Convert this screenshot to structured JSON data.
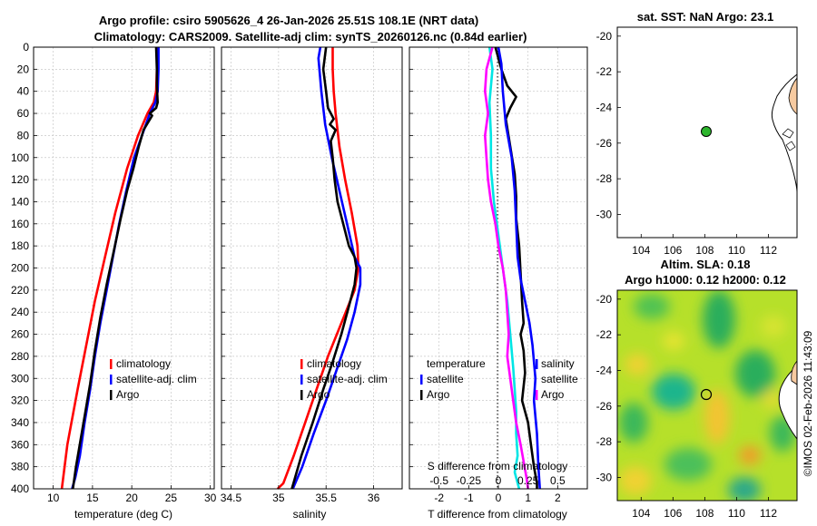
{
  "header": {
    "title_line1": "Argo profile: csiro 5905626_4 26-Jan-2026 25.51S 108.1E (NRT data)",
    "title_line2": "Climatology: CARS2009. Satellite-adj clim: synTS_20260126.nc (0.84d earlier)"
  },
  "colors": {
    "climatology": "#ff0000",
    "satellite": "#0000ff",
    "argo": "#000000",
    "magenta": "#ff00ff",
    "cyan": "#00e5e5",
    "land": "#f7caa0",
    "marker": "#2db52d"
  },
  "chart_data": [
    {
      "type": "line",
      "name": "temperature-profile",
      "xlabel": "temperature (deg C)",
      "ylabel": "",
      "xlim": [
        7.5,
        30.5
      ],
      "ylim": [
        0,
        400
      ],
      "y_reversed": true,
      "xticks": [
        10,
        15,
        20,
        25,
        30
      ],
      "yticks": [
        0,
        20,
        40,
        60,
        80,
        100,
        120,
        140,
        160,
        180,
        200,
        220,
        240,
        260,
        280,
        300,
        320,
        340,
        360,
        380,
        400
      ],
      "grid": true,
      "series": [
        {
          "name": "climatology",
          "color": "#ff0000",
          "x": [
            23.2,
            23.2,
            23.1,
            22.8,
            22.0,
            20.8,
            19.4,
            17.9,
            16.6,
            15.3,
            14.2,
            13.1,
            11.8,
            11.1
          ],
          "y": [
            0,
            20,
            40,
            50,
            60,
            80,
            110,
            150,
            190,
            230,
            270,
            310,
            360,
            400
          ]
        },
        {
          "name": "satellite-adj. clim",
          "color": "#0000ff",
          "x": [
            23.4,
            23.4,
            23.3,
            23.0,
            22.3,
            21.3,
            20.3,
            19.3,
            18.4,
            17.6,
            16.8,
            16.0,
            15.3,
            14.7,
            14.0,
            13.4,
            12.8,
            12.4
          ],
          "y": [
            0,
            20,
            40,
            50,
            60,
            80,
            100,
            130,
            160,
            190,
            220,
            250,
            280,
            310,
            340,
            370,
            390,
            400
          ]
        },
        {
          "name": "Argo",
          "color": "#000000",
          "x": [
            23.1,
            23.2,
            23.2,
            23.3,
            23.1,
            22.3,
            22.6,
            21.5,
            20.9,
            20.2,
            19.4,
            18.6,
            17.7,
            16.8,
            16.0,
            15.3,
            14.7,
            14.1,
            13.5,
            12.9,
            12.5
          ],
          "y": [
            0,
            20,
            35,
            50,
            55,
            60,
            62,
            75,
            90,
            110,
            130,
            155,
            185,
            215,
            245,
            275,
            305,
            330,
            355,
            380,
            400
          ]
        }
      ],
      "legend": [
        "climatology",
        "satellite-adj. clim",
        "Argo"
      ],
      "legend_loc": "lower-right"
    },
    {
      "type": "line",
      "name": "salinity-profile",
      "xlabel": "salinity",
      "ylabel": "",
      "xlim": [
        34.4,
        36.3
      ],
      "ylim": [
        0,
        400
      ],
      "y_reversed": true,
      "xticks": [
        34.5,
        35,
        35.5,
        36
      ],
      "xticklabels": [
        "34.5",
        "35",
        "35.5",
        "36"
      ],
      "grid": true,
      "series": [
        {
          "name": "climatology",
          "color": "#ff0000",
          "x": [
            35.57,
            35.57,
            35.58,
            35.6,
            35.64,
            35.7,
            35.77,
            35.83,
            35.84,
            35.8,
            35.66,
            35.52,
            35.4,
            35.28,
            35.16,
            35.05,
            34.99
          ],
          "y": [
            0,
            20,
            40,
            60,
            90,
            120,
            150,
            180,
            200,
            220,
            250,
            280,
            310,
            340,
            370,
            395,
            400
          ]
        },
        {
          "name": "satellite-adj. clim",
          "color": "#0000ff",
          "x": [
            35.44,
            35.42,
            35.45,
            35.49,
            35.56,
            35.64,
            35.72,
            35.8,
            35.86,
            35.86,
            35.8,
            35.72,
            35.62,
            35.5,
            35.37,
            35.25,
            35.15
          ],
          "y": [
            0,
            10,
            40,
            70,
            100,
            130,
            160,
            190,
            200,
            215,
            240,
            265,
            290,
            320,
            350,
            380,
            400
          ]
        },
        {
          "name": "Argo",
          "color": "#000000",
          "x": [
            35.5,
            35.47,
            35.5,
            35.52,
            35.58,
            35.54,
            35.6,
            35.55,
            35.57,
            35.59,
            35.62,
            35.68,
            35.74,
            35.8,
            35.82,
            35.8,
            35.74,
            35.66,
            35.57,
            35.47,
            35.36,
            35.24,
            35.14
          ],
          "y": [
            0,
            20,
            40,
            55,
            65,
            70,
            75,
            85,
            100,
            120,
            140,
            160,
            180,
            190,
            200,
            215,
            235,
            260,
            285,
            310,
            340,
            370,
            400
          ]
        }
      ],
      "legend": [
        "climatology",
        "satellite-adj. clim",
        "Argo"
      ],
      "legend_loc": "lower-right"
    },
    {
      "type": "line",
      "name": "difference-from-climatology",
      "xlabel": "T difference from climatology",
      "top_axis_label": "S difference from climatology",
      "xlim": [
        -3.0,
        3.0
      ],
      "ylim": [
        0,
        400
      ],
      "y_reversed": true,
      "xticks": [
        -2,
        -1,
        0,
        1,
        2
      ],
      "xticklabels": [
        "-2",
        "-1",
        "0",
        "1",
        "2"
      ],
      "s_ticks": [
        -0.5,
        -0.25,
        0,
        0.25,
        0.5
      ],
      "s_ticklabels": [
        "-0.5",
        "-0.25",
        "0",
        "0.25",
        "0.5"
      ],
      "grid": true,
      "series": [
        {
          "name": "temperature satellite",
          "color": "#00e5e5",
          "x": [
            -0.3,
            -0.2,
            -0.3,
            -0.25,
            -0.25,
            -0.15,
            0.0,
            0.15,
            0.3,
            0.4,
            0.5,
            0.55,
            0.6,
            0.6,
            0.65,
            0.55,
            0.7
          ],
          "y": [
            0,
            20,
            50,
            80,
            110,
            140,
            170,
            200,
            230,
            260,
            290,
            310,
            330,
            350,
            370,
            385,
            400
          ]
        },
        {
          "name": "temperature Argo",
          "color": "#000000",
          "x": [
            -0.1,
            0.1,
            0.3,
            0.6,
            0.4,
            0.25,
            0.4,
            0.55,
            0.6,
            0.6,
            0.7,
            0.75,
            0.8,
            0.85,
            0.75,
            0.85,
            0.9,
            0.8,
            1.0,
            1.1,
            1.2,
            1.3,
            1.3
          ],
          "y": [
            0,
            20,
            35,
            45,
            55,
            65,
            90,
            115,
            135,
            155,
            180,
            205,
            230,
            250,
            260,
            275,
            295,
            320,
            340,
            360,
            380,
            395,
            400
          ]
        },
        {
          "name": "salinity satellite",
          "color": "#0000ff",
          "x": [
            0.0,
            0.1,
            0.15,
            0.25,
            0.45,
            0.55,
            0.6,
            0.65,
            0.75,
            0.9,
            1.05,
            1.15,
            1.25,
            1.2,
            1.3,
            1.35,
            1.4
          ],
          "y": [
            0,
            15,
            40,
            70,
            100,
            130,
            160,
            190,
            210,
            230,
            250,
            270,
            300,
            320,
            350,
            380,
            400
          ]
        },
        {
          "name": "salinity Argo",
          "color": "#ff00ff",
          "x": [
            -0.2,
            -0.4,
            -0.45,
            -0.35,
            -0.45,
            -0.4,
            -0.35,
            -0.25,
            -0.1,
            0.0,
            0.15,
            0.25,
            0.3,
            0.35,
            0.3,
            0.4,
            0.5,
            0.6,
            0.75,
            0.95,
            1.0
          ],
          "y": [
            0,
            20,
            40,
            60,
            80,
            100,
            120,
            140,
            160,
            180,
            200,
            220,
            240,
            260,
            280,
            300,
            320,
            340,
            360,
            390,
            400
          ]
        }
      ],
      "legend_left": [
        "temperature",
        "satellite",
        "Argo"
      ],
      "legend_right": [
        "salinity",
        "satellite",
        "Argo"
      ],
      "legend_loc": "lower-center"
    },
    {
      "type": "heatmap",
      "name": "sst-map",
      "title": "sat. SST: NaN Argo: 23.1",
      "xlim": [
        102.5,
        113.8
      ],
      "ylim": [
        -31.3,
        -19.5
      ],
      "xticks": [
        104,
        106,
        108,
        110,
        112
      ],
      "yticks": [
        -20,
        -22,
        -24,
        -26,
        -28,
        -30
      ],
      "argo_lon": 108.1,
      "argo_lat": -25.51
    },
    {
      "type": "heatmap",
      "name": "sla-map",
      "title": "Altim. SLA: 0.18",
      "subtitle": "Argo h1000: 0.12 h2000: 0.12",
      "xlim": [
        102.5,
        113.8
      ],
      "ylim": [
        -31.3,
        -19.5
      ],
      "xticks": [
        104,
        106,
        108,
        110,
        112
      ],
      "yticks": [
        -20,
        -22,
        -24,
        -26,
        -28,
        -30
      ],
      "argo_lon": 108.1,
      "argo_lat": -25.51,
      "side_text": "©IMOS 02-Feb-2026 11:43:09"
    }
  ]
}
